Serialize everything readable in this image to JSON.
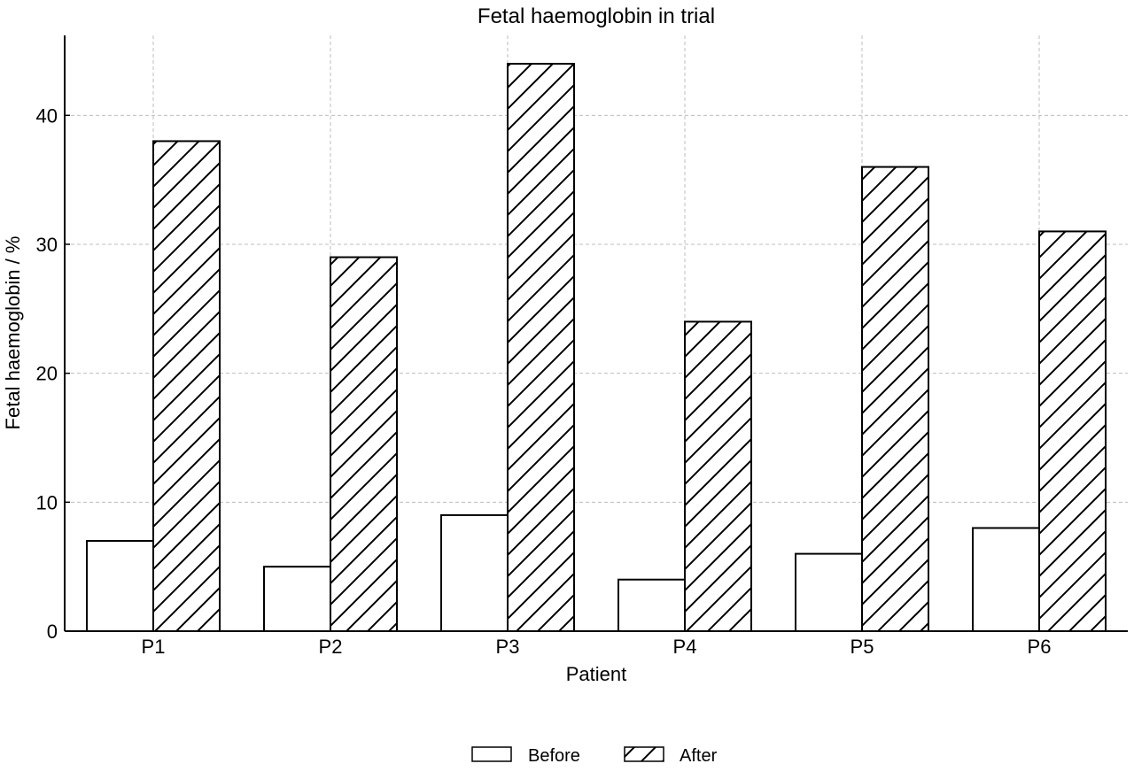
{
  "chart_data": {
    "type": "bar",
    "title": "Fetal haemoglobin in trial",
    "xlabel": "Patient",
    "ylabel": "Fetal haemoglobin / %",
    "categories": [
      "P1",
      "P2",
      "P3",
      "P4",
      "P5",
      "P6"
    ],
    "series": [
      {
        "name": "Before",
        "values": [
          7,
          5,
          9,
          4,
          6,
          8
        ],
        "fill": "none"
      },
      {
        "name": "After",
        "values": [
          38,
          29,
          44,
          24,
          36,
          31
        ],
        "fill": "hatch"
      }
    ],
    "ylim": [
      0,
      46.2
    ],
    "yticks": [
      0,
      10,
      20,
      30,
      40
    ],
    "grid": true,
    "legend_position": "bottom-center",
    "colors": {
      "edge": "#000000",
      "grid": "#bdbdbd",
      "background": "#ffffff"
    }
  }
}
